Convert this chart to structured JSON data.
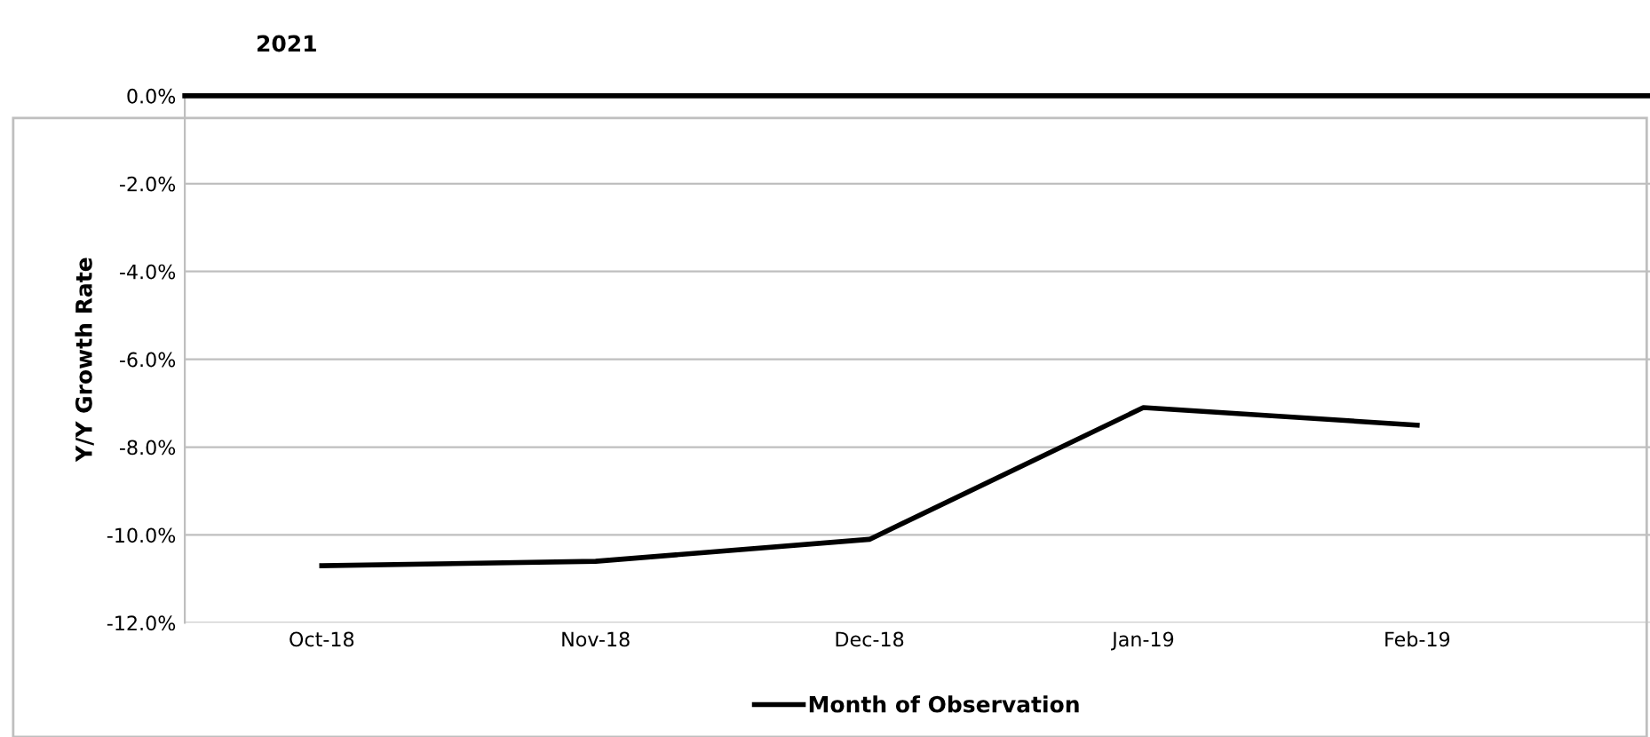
{
  "chart_data": {
    "type": "line",
    "title": "2021",
    "ylabel": "Y/Y Growth Rate",
    "categories": [
      "Oct-18",
      "Nov-18",
      "Dec-18",
      "Jan-19",
      "Feb-19"
    ],
    "series": [
      {
        "name": "Month of Observation",
        "color": "#000000",
        "values": [
          -10.7,
          -10.6,
          -10.1,
          -7.1,
          -7.5
        ]
      }
    ],
    "ylim": [
      -12,
      0
    ],
    "yticks": [
      {
        "value": -12,
        "label": "-12.0%"
      },
      {
        "value": -10,
        "label": "-10.0%"
      },
      {
        "value": -8,
        "label": "-8.0%"
      },
      {
        "value": -6,
        "label": "-6.0%"
      },
      {
        "value": -4,
        "label": "-4.0%"
      },
      {
        "value": -2,
        "label": "-2.0%"
      },
      {
        "value": 0,
        "label": "0.0%"
      }
    ],
    "grid": "y",
    "legend": "bottom",
    "marker": "none",
    "line_style": "solid"
  }
}
